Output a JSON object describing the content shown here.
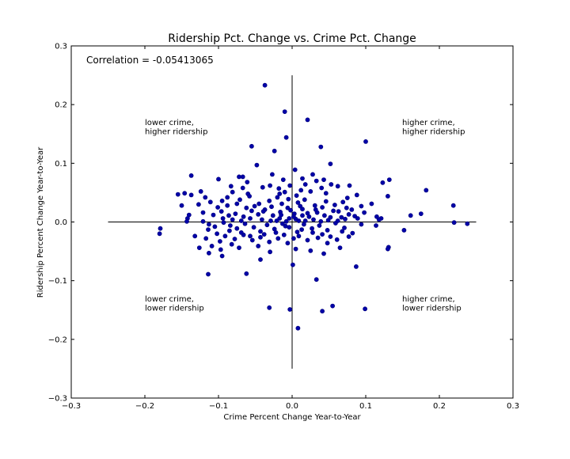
{
  "chart_data": {
    "type": "scatter",
    "title": "Ridership Pct. Change vs. Crime Pct. Change",
    "xlabel": "Crime Percent Change Year-to-Year",
    "ylabel": "Ridership Percent Change Year-to-Year",
    "xlim": [
      -0.3,
      0.3
    ],
    "ylim": [
      -0.3,
      0.3
    ],
    "xticks": [
      "−0.3",
      "−0.2",
      "−0.1",
      "0.0",
      "0.1",
      "0.2",
      "0.3"
    ],
    "yticks": [
      "−0.3",
      "−0.2",
      "−0.1",
      "0.0",
      "0.1",
      "0.2",
      "0.3"
    ],
    "grid": false,
    "marker_color": "#0000a8",
    "reference_lines": {
      "horizontal": {
        "y": 0,
        "xrange": [
          -0.25,
          0.25
        ]
      },
      "vertical": {
        "x": 0,
        "yrange": [
          -0.25,
          0.25
        ]
      }
    },
    "annotations": {
      "correlation": "Correlation = -0.05413065",
      "top_left": [
        "lower crime,",
        "higher ridership"
      ],
      "top_right": [
        "higher crime,",
        "higher ridership"
      ],
      "bottom_left": [
        "lower crime,",
        "lower ridership"
      ],
      "bottom_right": [
        "higher crime,",
        "lower ridership"
      ]
    },
    "points": [
      [
        -0.037,
        0.233
      ],
      [
        -0.01,
        0.188
      ],
      [
        0.021,
        0.174
      ],
      [
        -0.008,
        0.144
      ],
      [
        0.1,
        0.137
      ],
      [
        -0.055,
        0.129
      ],
      [
        0.039,
        0.128
      ],
      [
        -0.024,
        0.121
      ],
      [
        0.052,
        0.099
      ],
      [
        -0.048,
        0.097
      ],
      [
        0.004,
        0.089
      ],
      [
        -0.137,
        0.079
      ],
      [
        -0.027,
        0.081
      ],
      [
        0.028,
        0.081
      ],
      [
        -0.1,
        0.073
      ],
      [
        -0.067,
        0.077
      ],
      [
        -0.072,
        0.077
      ],
      [
        0.132,
        0.072
      ],
      [
        0.123,
        0.067
      ],
      [
        0.014,
        0.074
      ],
      [
        -0.155,
        0.047
      ],
      [
        -0.146,
        0.049
      ],
      [
        -0.124,
        0.052
      ],
      [
        -0.137,
        0.046
      ],
      [
        0.182,
        0.054
      ],
      [
        0.13,
        0.044
      ],
      [
        -0.081,
        0.051
      ],
      [
        -0.06,
        0.048
      ],
      [
        0.078,
        0.062
      ],
      [
        0.088,
        0.046
      ],
      [
        0.075,
        0.041
      ],
      [
        0.062,
        0.061
      ],
      [
        0.053,
        0.064
      ],
      [
        0.025,
        0.052
      ],
      [
        0.04,
        0.058
      ],
      [
        -0.04,
        0.059
      ],
      [
        -0.018,
        0.057
      ],
      [
        -0.01,
        0.051
      ],
      [
        0.012,
        0.054
      ],
      [
        -0.003,
        0.062
      ],
      [
        0.043,
        0.072
      ],
      [
        0.033,
        0.07
      ],
      [
        -0.15,
        0.028
      ],
      [
        -0.127,
        0.03
      ],
      [
        -0.111,
        0.034
      ],
      [
        -0.095,
        0.036
      ],
      [
        -0.088,
        0.042
      ],
      [
        -0.071,
        0.038
      ],
      [
        -0.058,
        0.044
      ],
      [
        -0.045,
        0.031
      ],
      [
        -0.031,
        0.036
      ],
      [
        -0.02,
        0.042
      ],
      [
        -0.005,
        0.039
      ],
      [
        0.008,
        0.033
      ],
      [
        0.017,
        0.038
      ],
      [
        0.031,
        0.028
      ],
      [
        0.046,
        0.035
      ],
      [
        0.058,
        0.029
      ],
      [
        0.069,
        0.034
      ],
      [
        0.081,
        0.021
      ],
      [
        0.094,
        0.027
      ],
      [
        0.108,
        0.031
      ],
      [
        0.121,
        0.006
      ],
      [
        0.161,
        0.011
      ],
      [
        0.175,
        0.014
      ],
      [
        0.219,
        0.028
      ],
      [
        -0.142,
        0.006
      ],
      [
        -0.143,
        0.001
      ],
      [
        -0.121,
        0.016
      ],
      [
        -0.107,
        0.012
      ],
      [
        -0.096,
        0.018
      ],
      [
        -0.086,
        0.011
      ],
      [
        -0.077,
        0.014
      ],
      [
        -0.066,
        0.009
      ],
      [
        -0.055,
        0.019
      ],
      [
        -0.046,
        0.013
      ],
      [
        -0.037,
        0.021
      ],
      [
        -0.026,
        0.011
      ],
      [
        -0.016,
        0.017
      ],
      [
        -0.006,
        0.024
      ],
      [
        0.003,
        0.014
      ],
      [
        0.014,
        0.022
      ],
      [
        0.023,
        0.009
      ],
      [
        0.034,
        0.016
      ],
      [
        0.044,
        0.011
      ],
      [
        0.056,
        0.019
      ],
      [
        0.067,
        0.008
      ],
      [
        0.077,
        0.013
      ],
      [
        0.089,
        0.006
      ],
      [
        0.115,
        0.009
      ],
      [
        0.118,
        0.004
      ],
      [
        -0.121,
        0.001
      ],
      [
        -0.113,
        -0.004
      ],
      [
        -0.105,
        -0.008
      ],
      [
        -0.093,
        -0.001
      ],
      [
        -0.084,
        -0.006
      ],
      [
        -0.075,
        -0.011
      ],
      [
        -0.064,
        -0.003
      ],
      [
        -0.052,
        -0.009
      ],
      [
        -0.043,
        -0.016
      ],
      [
        -0.034,
        -0.005
      ],
      [
        -0.024,
        -0.012
      ],
      [
        -0.013,
        -0.003
      ],
      [
        -0.004,
        -0.009
      ],
      [
        0.007,
        -0.017
      ],
      [
        0.016,
        -0.004
      ],
      [
        0.027,
        -0.011
      ],
      [
        0.037,
        -0.006
      ],
      [
        0.048,
        -0.014
      ],
      [
        0.059,
        -0.002
      ],
      [
        0.071,
        -0.01
      ],
      [
        0.082,
        -0.019
      ],
      [
        0.094,
        -0.004
      ],
      [
        0.114,
        -0.006
      ],
      [
        0.152,
        -0.014
      ],
      [
        0.22,
        -0.001
      ],
      [
        0.238,
        -0.003
      ],
      [
        -0.179,
        -0.011
      ],
      [
        -0.18,
        -0.02
      ],
      [
        -0.114,
        -0.013
      ],
      [
        -0.102,
        -0.02
      ],
      [
        -0.091,
        -0.024
      ],
      [
        -0.078,
        -0.029
      ],
      [
        -0.066,
        -0.022
      ],
      [
        -0.054,
        -0.031
      ],
      [
        -0.043,
        -0.026
      ],
      [
        -0.031,
        -0.034
      ],
      [
        -0.019,
        -0.028
      ],
      [
        -0.006,
        -0.036
      ],
      [
        0.009,
        -0.024
      ],
      [
        0.021,
        -0.031
      ],
      [
        0.035,
        -0.027
      ],
      [
        0.048,
        -0.036
      ],
      [
        0.061,
        -0.03
      ],
      [
        0.077,
        -0.025
      ],
      [
        0.131,
        -0.043
      ],
      [
        0.13,
        -0.046
      ],
      [
        -0.126,
        -0.044
      ],
      [
        -0.109,
        -0.041
      ],
      [
        -0.097,
        -0.047
      ],
      [
        -0.082,
        -0.038
      ],
      [
        -0.072,
        -0.044
      ],
      [
        -0.046,
        -0.041
      ],
      [
        -0.03,
        -0.051
      ],
      [
        0.005,
        -0.046
      ],
      [
        0.025,
        -0.049
      ],
      [
        0.043,
        -0.054
      ],
      [
        0.065,
        -0.044
      ],
      [
        -0.113,
        -0.053
      ],
      [
        -0.095,
        -0.058
      ],
      [
        -0.043,
        -0.064
      ],
      [
        0.001,
        -0.073
      ],
      [
        0.087,
        -0.076
      ],
      [
        -0.114,
        -0.089
      ],
      [
        -0.062,
        -0.088
      ],
      [
        0.033,
        -0.098
      ],
      [
        -0.031,
        -0.146
      ],
      [
        -0.003,
        -0.149
      ],
      [
        0.055,
        -0.143
      ],
      [
        0.099,
        -0.148
      ],
      [
        0.041,
        -0.152
      ],
      [
        0.008,
        -0.181
      ],
      [
        -0.14,
        0.012
      ],
      [
        -0.118,
        0.042
      ],
      [
        -0.101,
        0.025
      ],
      [
        -0.088,
        0.028
      ],
      [
        -0.075,
        0.031
      ],
      [
        -0.062,
        0.024
      ],
      [
        -0.051,
        0.027
      ],
      [
        -0.039,
        0.018
      ],
      [
        -0.028,
        0.026
      ],
      [
        -0.014,
        0.031
      ],
      [
        -0.002,
        0.02
      ],
      [
        0.011,
        0.027
      ],
      [
        0.021,
        0.015
      ],
      [
        0.032,
        0.021
      ],
      [
        0.041,
        0.025
      ],
      [
        0.052,
        0.008
      ],
      [
        0.063,
        0.018
      ],
      [
        0.074,
        0.024
      ],
      [
        0.085,
        0.01
      ],
      [
        0.098,
        0.016
      ],
      [
        -0.132,
        -0.024
      ],
      [
        -0.117,
        -0.028
      ],
      [
        -0.098,
        -0.033
      ],
      [
        -0.085,
        -0.015
      ],
      [
        -0.069,
        -0.018
      ],
      [
        -0.057,
        -0.024
      ],
      [
        -0.038,
        -0.021
      ],
      [
        -0.022,
        -0.018
      ],
      [
        -0.011,
        -0.022
      ],
      [
        0.002,
        -0.028
      ],
      [
        0.013,
        -0.013
      ],
      [
        0.028,
        -0.018
      ],
      [
        0.041,
        -0.021
      ],
      [
        0.052,
        -0.025
      ],
      [
        0.068,
        -0.016
      ],
      [
        -0.094,
        0.006
      ],
      [
        -0.081,
        0.004
      ],
      [
        -0.069,
        0.002
      ],
      [
        -0.057,
        0.006
      ],
      [
        -0.041,
        0.004
      ],
      [
        -0.029,
        0.002
      ],
      [
        -0.017,
        0.006
      ],
      [
        -0.008,
        0.001
      ],
      [
        0.005,
        0.005
      ],
      [
        0.018,
        0.002
      ],
      [
        0.029,
        0.004
      ],
      [
        0.039,
        0.001
      ],
      [
        0.049,
        0.003
      ],
      [
        0.062,
        0.002
      ],
      [
        0.072,
        0.005
      ],
      [
        -0.017,
        0.048
      ],
      [
        0.006,
        0.045
      ],
      [
        -0.03,
        0.062
      ],
      [
        0.046,
        0.049
      ],
      [
        -0.067,
        0.058
      ],
      [
        -0.083,
        0.061
      ],
      [
        -0.061,
        0.068
      ],
      [
        0.018,
        0.064
      ],
      [
        -0.012,
        0.072
      ],
      [
        -0.004,
        0.006
      ],
      [
        -0.009,
        -0.007
      ],
      [
        0.009,
        0.002
      ],
      [
        0.002,
        0.009
      ],
      [
        -0.015,
        0.012
      ],
      [
        -0.021,
        0.002
      ],
      [
        0.014,
        0.011
      ]
    ]
  }
}
